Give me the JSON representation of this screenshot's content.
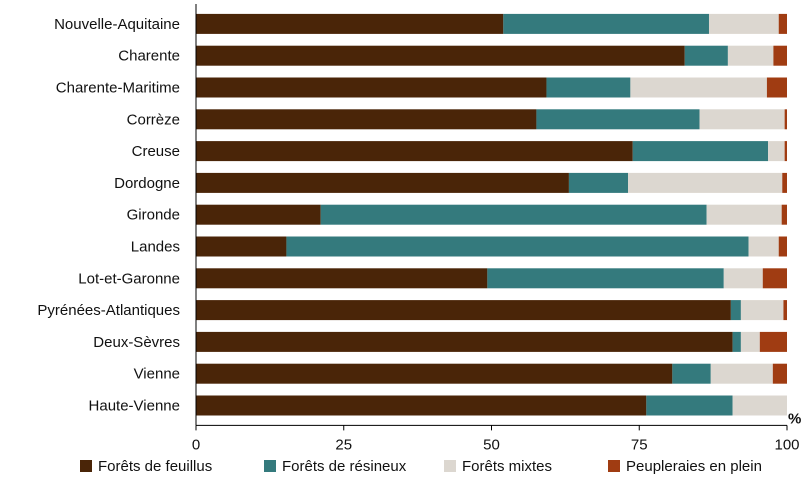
{
  "chart_data": {
    "type": "bar",
    "orientation": "horizontal",
    "stacked": true,
    "categories": [
      "Nouvelle-Aquitaine",
      "Charente",
      "Charente-Maritime",
      "Corrèze",
      "Creuse",
      "Dordogne",
      "Gironde",
      "Landes",
      "Lot-et-Garonne",
      "Pyrénées-Atlantiques",
      "Deux-Sèvres",
      "Vienne",
      "Haute-Vienne"
    ],
    "series": [
      {
        "name": "Forêts de feuillus",
        "color": "#4a2508",
        "values": [
          52,
          82.7,
          59.3,
          57.6,
          73.9,
          63.1,
          21.1,
          15.3,
          49.3,
          90.5,
          90.8,
          80.6,
          76.2
        ]
      },
      {
        "name": "Forêts de résineux",
        "color": "#347a7d",
        "values": [
          34.8,
          7.3,
          14.2,
          27.6,
          22.9,
          10,
          65.3,
          78.2,
          40,
          1.7,
          1.4,
          6.5,
          14.6
        ]
      },
      {
        "name": "Forêts mixtes",
        "color": "#dcd7d0",
        "values": [
          11.8,
          7.7,
          23.1,
          14.4,
          2.8,
          26.1,
          12.7,
          5.1,
          6.6,
          7.2,
          3.2,
          10.5,
          9.2
        ]
      },
      {
        "name": "Peupleraies en plein",
        "color": "#a03c12",
        "values": [
          1.4,
          2.3,
          3.4,
          0.4,
          0.4,
          0.8,
          0.9,
          1.4,
          4.1,
          0.6,
          4.6,
          2.4,
          0
        ]
      }
    ],
    "xlim": [
      0,
      100
    ],
    "xticks": [
      "0",
      "25",
      "50",
      "75",
      "100"
    ],
    "unit_label": "%",
    "legend_position": "bottom",
    "grid": false
  }
}
